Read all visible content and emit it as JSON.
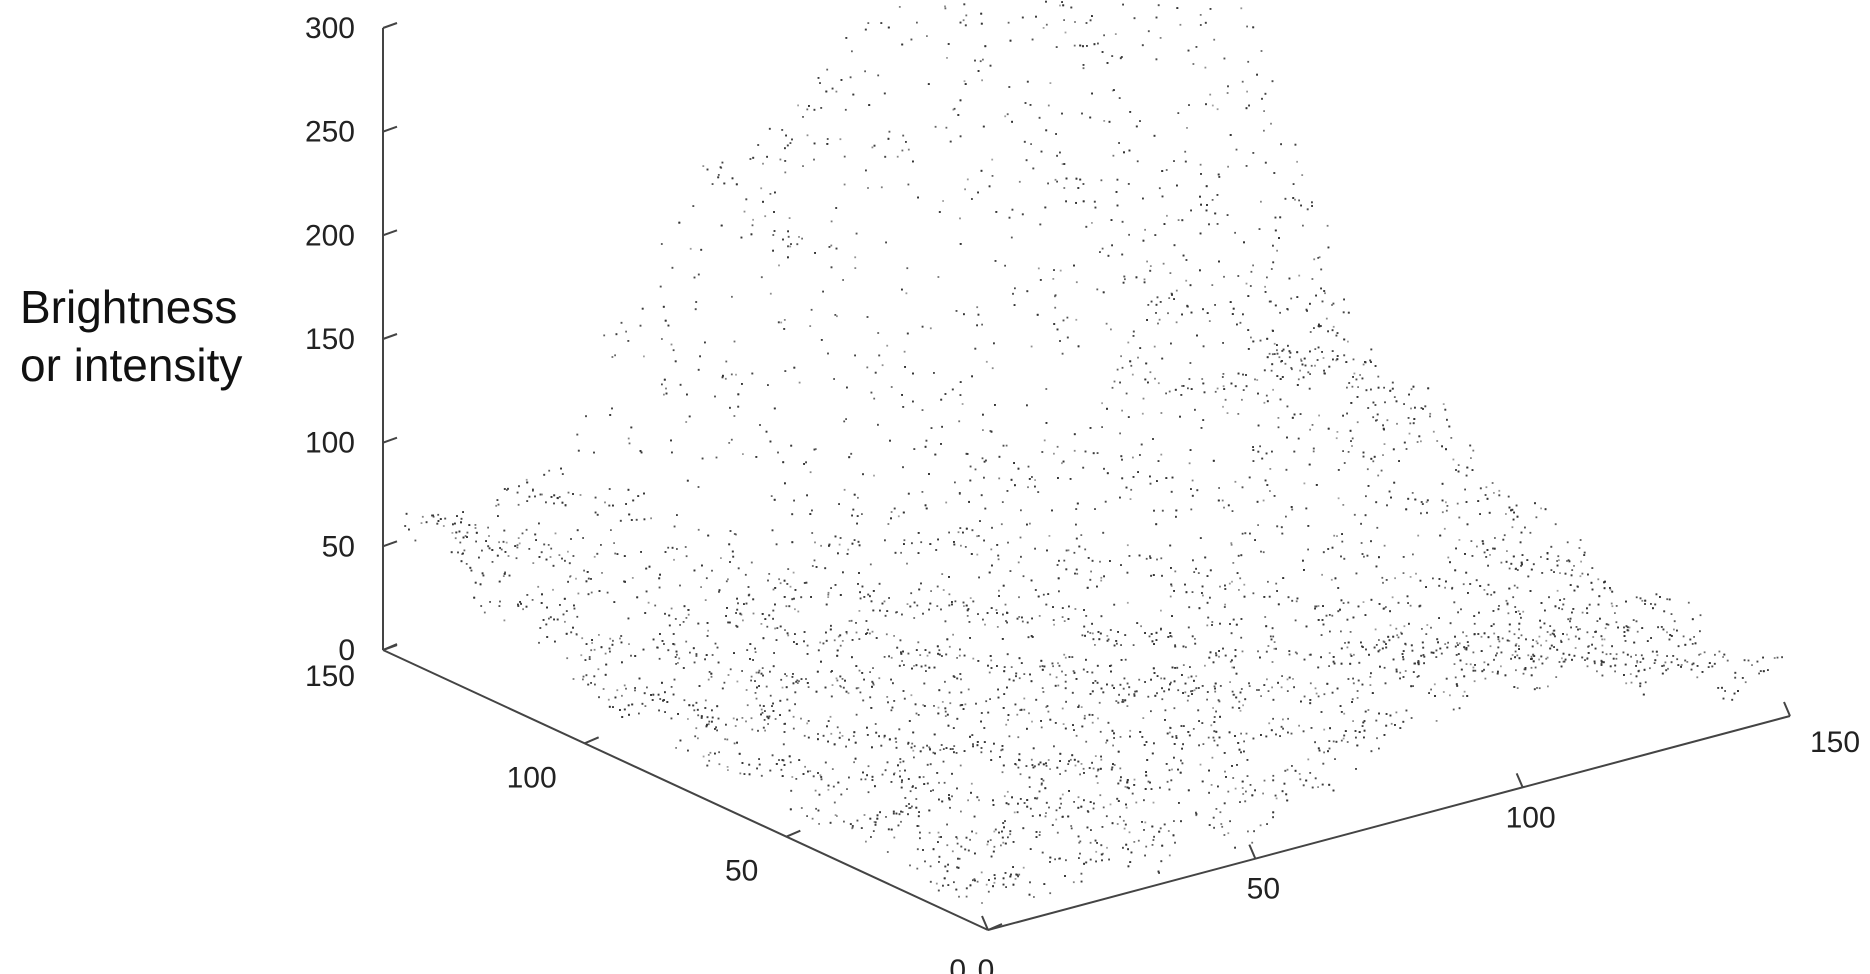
{
  "chart_data": {
    "type": "scatter",
    "subtype": "3d-point-cloud",
    "title": "",
    "zlabel_lines": [
      "Brightness",
      "or intensity"
    ],
    "xlabel": "",
    "ylabel": "",
    "x_range": [
      0,
      150
    ],
    "y_range": [
      0,
      150
    ],
    "z_range": [
      0,
      300
    ],
    "x_ticks": [
      "0",
      "50",
      "100",
      "150"
    ],
    "y_ticks": [
      "0",
      "50",
      "100",
      "150"
    ],
    "z_ticks": [
      "0",
      "50",
      "100",
      "150",
      "200",
      "250",
      "300"
    ],
    "grid": false,
    "legend": "none",
    "marker_color": "#333333",
    "surface_profile": {
      "description_points": [
        {
          "x": 0,
          "y": 150,
          "z": 40
        },
        {
          "x": 0,
          "y": 100,
          "z": 20
        },
        {
          "x": 0,
          "y": 0,
          "z": 10
        },
        {
          "x": 50,
          "y": 0,
          "z": 30
        },
        {
          "x": 100,
          "y": 0,
          "z": 60
        },
        {
          "x": 150,
          "y": 0,
          "z": 40
        },
        {
          "x": 150,
          "y": 150,
          "z": 190
        },
        {
          "x": 100,
          "y": 150,
          "z": 300
        },
        {
          "x": 50,
          "y": 150,
          "z": 160
        }
      ]
    }
  }
}
